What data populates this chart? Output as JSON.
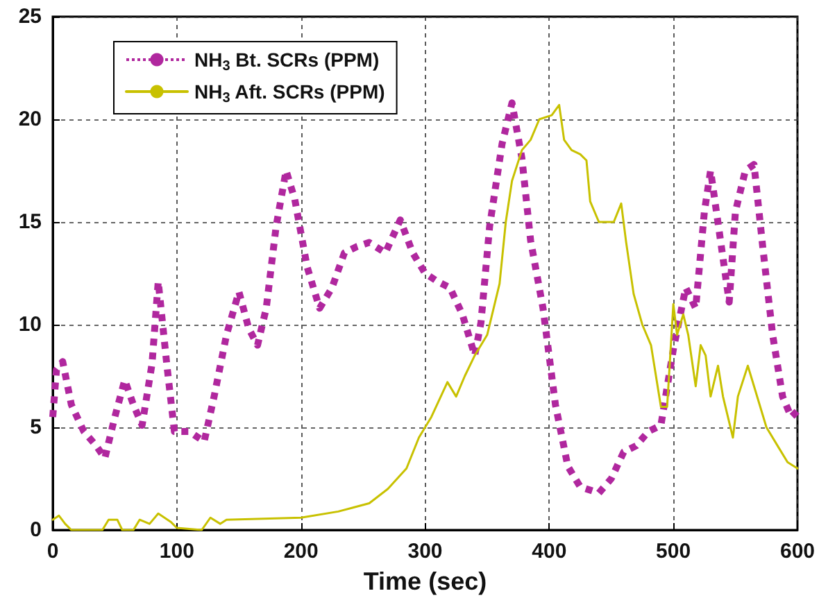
{
  "chart_data": {
    "type": "line",
    "xlabel": "Time (sec)",
    "xlim": [
      0,
      600
    ],
    "xticks": [
      0,
      100,
      200,
      300,
      400,
      500,
      600
    ],
    "ylim": [
      0,
      25
    ],
    "yticks": [
      0,
      5,
      10,
      15,
      20,
      25
    ],
    "grid": true,
    "legend": "top left",
    "marker": "none",
    "series": [
      {
        "name": "NH$_{3}$ Bt. SCRs (PPM)",
        "color": "#b0279e",
        "line_style": "dotted",
        "x": [
          0,
          3,
          8,
          15,
          25,
          35,
          42,
          50,
          58,
          65,
          72,
          80,
          85,
          92,
          98,
          110,
          122,
          130,
          140,
          150,
          158,
          165,
          172,
          180,
          188,
          195,
          205,
          215,
          225,
          235,
          245,
          255,
          268,
          280,
          290,
          300,
          310,
          320,
          330,
          340,
          345,
          352,
          362,
          370,
          378,
          385,
          395,
          405,
          415,
          425,
          440,
          450,
          460,
          470,
          480,
          490,
          500,
          510,
          518,
          525,
          530,
          538,
          545,
          550,
          558,
          565,
          572,
          580,
          588,
          595,
          600
        ],
        "values": [
          5.5,
          7.8,
          8.2,
          6.1,
          4.8,
          4.1,
          3.5,
          5.5,
          7.3,
          6.1,
          5.1,
          8.1,
          12.1,
          8,
          4.8,
          4.8,
          4.3,
          6.5,
          9.5,
          11.6,
          9.8,
          9,
          10.8,
          14.8,
          17.5,
          16.1,
          12.8,
          10.8,
          11.8,
          13.5,
          13.8,
          14,
          13.5,
          15.1,
          13.5,
          12.5,
          12.1,
          11.8,
          10.5,
          8.5,
          10.1,
          14.8,
          18.8,
          20.8,
          18.1,
          14.1,
          10.8,
          6.1,
          3.1,
          2.1,
          1.8,
          2.5,
          3.8,
          4.1,
          4.8,
          5.1,
          8.8,
          11.8,
          10.8,
          15.5,
          17.5,
          14.1,
          11.1,
          15.5,
          17.5,
          17.8,
          13.8,
          9.5,
          6.5,
          5.5,
          5.8
        ]
      },
      {
        "name": "NH$_{3}$ Aft. SCRs (PPM)",
        "color": "#c8c100",
        "line_style": "solid",
        "x": [
          0,
          5,
          10,
          15,
          40,
          45,
          52,
          56,
          65,
          70,
          78,
          85,
          95,
          100,
          120,
          127,
          135,
          140,
          200,
          230,
          255,
          270,
          285,
          295,
          305,
          318,
          325,
          332,
          340,
          350,
          360,
          365,
          370,
          378,
          385,
          392,
          402,
          408,
          412,
          418,
          425,
          430,
          433,
          440,
          452,
          458,
          462,
          468,
          475,
          482,
          490,
          495,
          500,
          503,
          508,
          512,
          518,
          522,
          526,
          530,
          536,
          540,
          548,
          552,
          560,
          565,
          575,
          585,
          592,
          600
        ],
        "values": [
          0.5,
          0.7,
          0.3,
          0,
          0,
          0.5,
          0.5,
          0,
          0,
          0.5,
          0.3,
          0.8,
          0.4,
          0.1,
          0,
          0.6,
          0.3,
          0.5,
          0.6,
          0.9,
          1.3,
          2,
          3,
          4.5,
          5.5,
          7.2,
          6.5,
          7.5,
          8.5,
          9.5,
          12,
          15,
          17,
          18.5,
          19,
          20,
          20.2,
          20.7,
          19,
          18.5,
          18.3,
          18,
          16,
          15,
          15,
          15.9,
          14,
          11.5,
          10,
          9,
          6,
          6,
          11,
          9.5,
          10.5,
          9.5,
          7,
          9,
          8.5,
          6.5,
          8,
          6.5,
          4.5,
          6.5,
          8,
          7,
          5,
          4,
          3.3,
          3
        ]
      }
    ]
  }
}
